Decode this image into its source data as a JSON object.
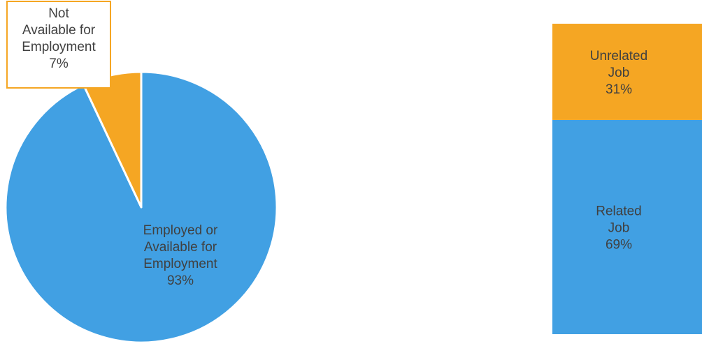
{
  "chart_data": [
    {
      "type": "pie",
      "slices": [
        {
          "label": "Employed or Available for Employment",
          "value": 93,
          "display": "93%",
          "color": "#41a0e3"
        },
        {
          "label": "Not Available for Employment",
          "value": 7,
          "display": "7%",
          "color": "#f5a623"
        }
      ],
      "title": "",
      "legend": "none"
    },
    {
      "type": "bar",
      "stacked": true,
      "categories": [
        ""
      ],
      "series": [
        {
          "name": "Related Job",
          "values": [
            69
          ],
          "display": "69%",
          "color": "#41a0e3"
        },
        {
          "name": "Unrelated Job",
          "values": [
            31
          ],
          "display": "31%",
          "color": "#f5a623"
        }
      ],
      "ylim": [
        0,
        100
      ],
      "title": "",
      "legend": "none"
    }
  ]
}
